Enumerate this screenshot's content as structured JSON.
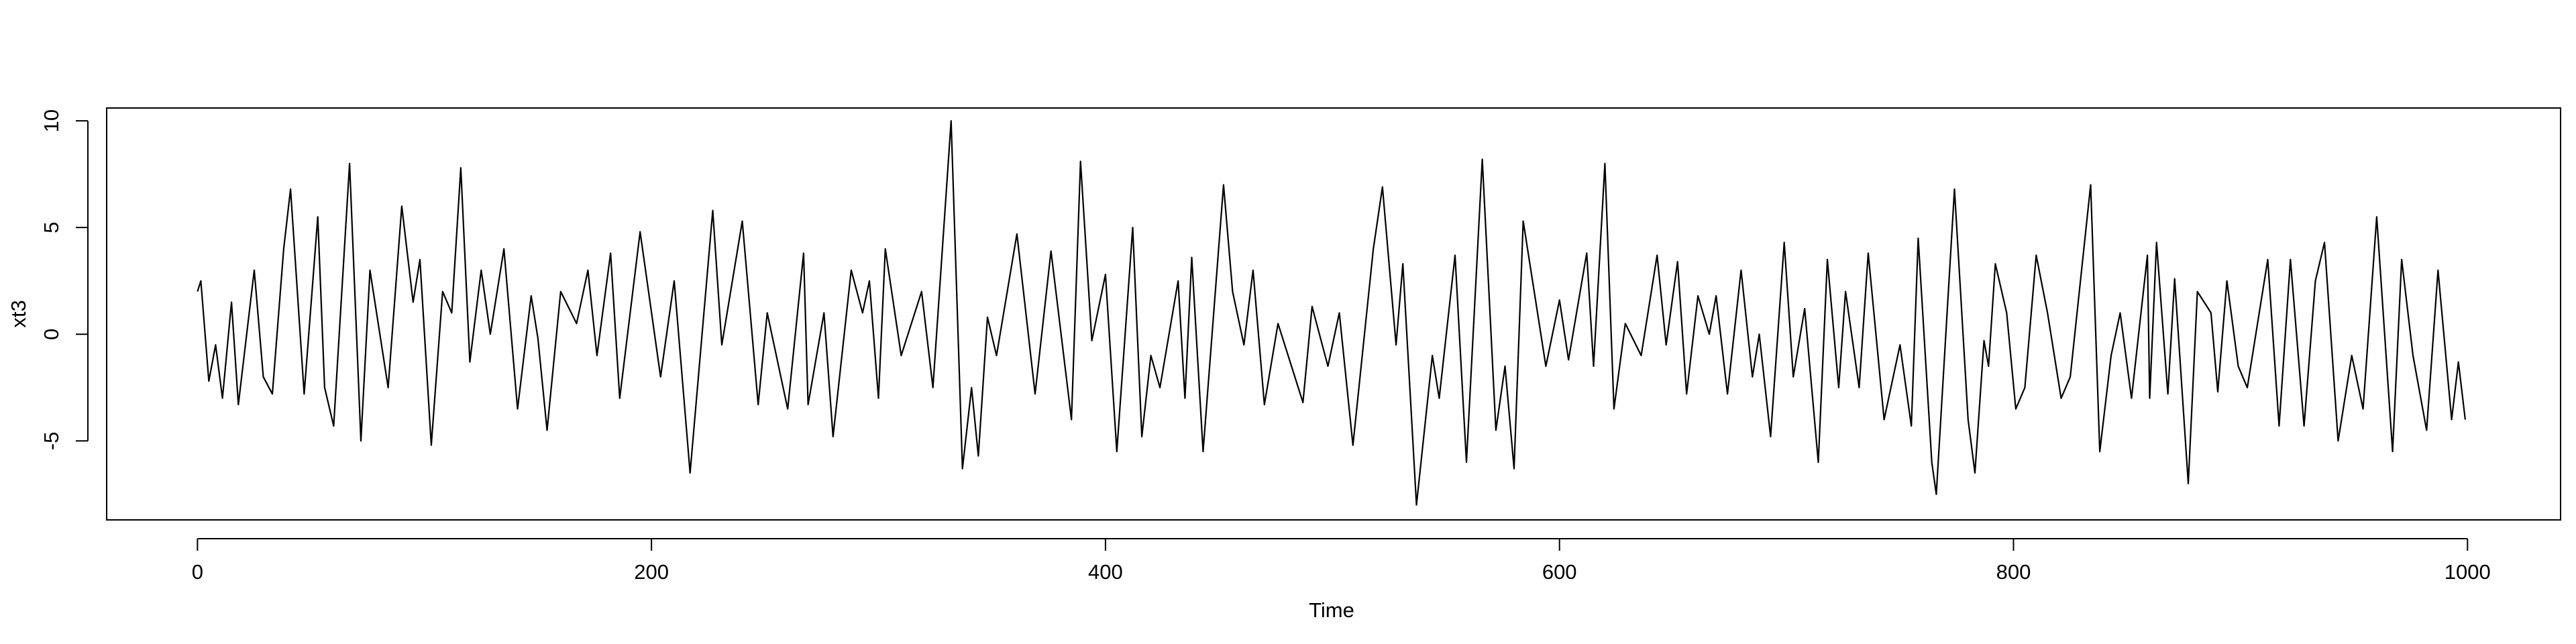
{
  "chart_data": {
    "type": "line",
    "x_label": "Time",
    "y_label": "xt3",
    "x": [
      0,
      1.5,
      5,
      8,
      11,
      15,
      18,
      25,
      29,
      33,
      38,
      41,
      47,
      53,
      56,
      60,
      67,
      72,
      76,
      84,
      90,
      95,
      98,
      103,
      108,
      112,
      116,
      120,
      125,
      129,
      135,
      141,
      147,
      150,
      154,
      160,
      167,
      172,
      176,
      182,
      186,
      195,
      204,
      210,
      217,
      227,
      231,
      240,
      247,
      251,
      260,
      267,
      269,
      276,
      280,
      288,
      293,
      296,
      300,
      303,
      310,
      319,
      324,
      332,
      337,
      341,
      344,
      348,
      352,
      361,
      369,
      376,
      385,
      389,
      394,
      400,
      405,
      412,
      416,
      420,
      424,
      432,
      435,
      438,
      443,
      452,
      456,
      461,
      465,
      470,
      476,
      487,
      491,
      498,
      503,
      509,
      518,
      522,
      528,
      531,
      537,
      544,
      547,
      554,
      559,
      566,
      572,
      576,
      580,
      584,
      594,
      600,
      604,
      612,
      615,
      620,
      624,
      629,
      636,
      643,
      647,
      652,
      656,
      661,
      666,
      669,
      674,
      680,
      685,
      688,
      693,
      699,
      703,
      708,
      714,
      718,
      723,
      726,
      732,
      736,
      743,
      750,
      755,
      758,
      764,
      766,
      774,
      780,
      783,
      787,
      789,
      792,
      797,
      801,
      805,
      810,
      815,
      821,
      825,
      834,
      838,
      843,
      847,
      852,
      859,
      860,
      863,
      868,
      871,
      877,
      881,
      887,
      890,
      894,
      899,
      903,
      912,
      917,
      922,
      928,
      933,
      937,
      943,
      949,
      954,
      960,
      967,
      971,
      976,
      982,
      987,
      993,
      996,
      999
    ],
    "series": [
      {
        "name": "xt3",
        "color": "#000000",
        "values": [
          2,
          2.5,
          -2.2,
          -0.5,
          -3,
          1.5,
          -3.3,
          3,
          -2,
          -2.8,
          4,
          6.8,
          -2.8,
          5.5,
          -2.5,
          -4.3,
          8,
          -5,
          3,
          -2.5,
          6,
          1.5,
          3.5,
          -5.2,
          2,
          1,
          7.8,
          -1.3,
          3,
          0,
          4,
          -3.5,
          1.8,
          -0.2,
          -4.5,
          2,
          0.5,
          3,
          -1,
          3.8,
          -3,
          4.8,
          -2,
          2.5,
          -6.5,
          5.8,
          -0.5,
          5.3,
          -3.3,
          1,
          -3.5,
          3.8,
          -3.3,
          1,
          -4.8,
          3,
          1,
          2.5,
          -3,
          4,
          -1,
          2,
          -2.5,
          10,
          -6.3,
          -2.5,
          -5.7,
          0.8,
          -1,
          4.7,
          -2.8,
          3.9,
          -4,
          8.1,
          -0.3,
          2.8,
          -5.5,
          5,
          -4.8,
          -1,
          -2.5,
          2.5,
          -3,
          3.6,
          -5.5,
          7,
          2,
          -0.5,
          3,
          -3.3,
          0.5,
          -3.2,
          1.3,
          -1.5,
          1,
          -5.2,
          4,
          6.9,
          -0.5,
          3.3,
          -8,
          -1,
          -3,
          3.7,
          -6,
          8.2,
          -4.5,
          -1.5,
          -6.3,
          5.3,
          -1.5,
          1.6,
          -1.2,
          3.8,
          -1.5,
          8,
          -3.5,
          0.5,
          -1,
          3.7,
          -0.5,
          3.4,
          -2.8,
          1.8,
          0,
          1.8,
          -2.8,
          3,
          -2,
          0,
          -4.8,
          4.3,
          -2,
          1.2,
          -6,
          3.5,
          -2.5,
          2,
          -2.5,
          3.8,
          -4,
          -0.5,
          -4.3,
          4.5,
          -6,
          -7.5,
          6.8,
          -4,
          -6.5,
          -0.3,
          -1.5,
          3.3,
          1,
          -3.5,
          -2.5,
          3.7,
          1,
          -3,
          -2,
          7,
          -5.5,
          -1,
          1,
          -3,
          3.7,
          -3,
          4.3,
          -2.8,
          2.6,
          -7,
          2,
          1,
          -2.7,
          2.5,
          -1.5,
          -2.5,
          3.5,
          -4.3,
          3.5,
          -4.3,
          2.5,
          4.3,
          -5,
          -1,
          -3.5,
          5.5,
          -5.5,
          3.5,
          -1,
          -4.5,
          3,
          -4,
          -1.3,
          -4
        ]
      }
    ],
    "xlim": [
      -40,
      1041
    ],
    "ylim": [
      -8.7,
      10.6
    ],
    "xticks": [
      0,
      200,
      400,
      600,
      800,
      1000
    ],
    "yticks": [
      -5,
      0,
      5,
      10
    ]
  }
}
